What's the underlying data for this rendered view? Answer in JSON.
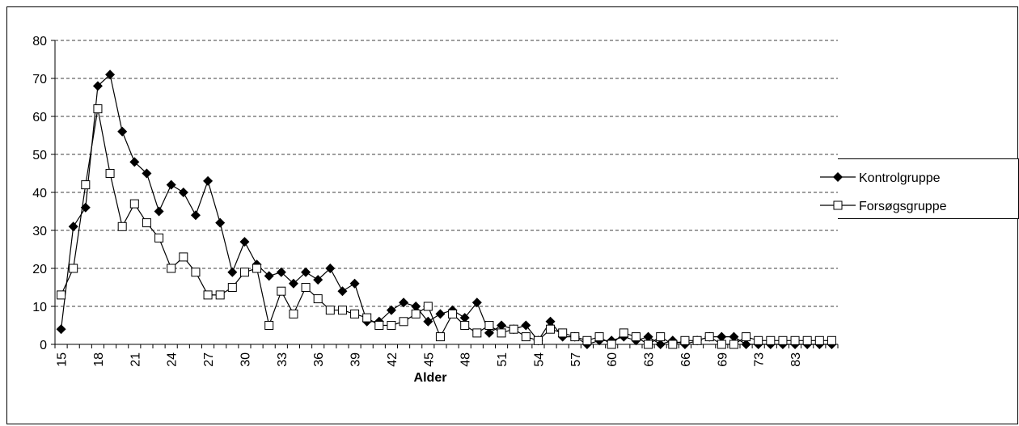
{
  "chart_data": {
    "type": "line",
    "x_label": "Alder",
    "categories": [
      "15",
      null,
      null,
      "18",
      null,
      null,
      "21",
      null,
      null,
      "24",
      null,
      null,
      "27",
      null,
      null,
      "30",
      null,
      null,
      "33",
      null,
      null,
      "36",
      null,
      null,
      "39",
      null,
      null,
      "42",
      null,
      null,
      "45",
      null,
      null,
      "48",
      null,
      null,
      "51",
      null,
      null,
      "54",
      null,
      null,
      "57",
      null,
      null,
      "60",
      null,
      null,
      "63",
      null,
      null,
      "66",
      null,
      null,
      "69",
      null,
      null,
      "73",
      null,
      null,
      "83",
      null,
      null,
      null
    ],
    "series": [
      {
        "name": "Kontrolgruppe",
        "color": "#000000",
        "marker": "diamond",
        "values": [
          4,
          31,
          36,
          68,
          71,
          56,
          48,
          45,
          35,
          42,
          40,
          34,
          43,
          32,
          19,
          27,
          21,
          18,
          19,
          16,
          19,
          17,
          20,
          14,
          16,
          6,
          6,
          9,
          11,
          10,
          6,
          8,
          9,
          7,
          11,
          3,
          5,
          4,
          5,
          1,
          6,
          2,
          2,
          0,
          1,
          1,
          2,
          1,
          2,
          0,
          1,
          0,
          1,
          2,
          2,
          2,
          0,
          0,
          0,
          0,
          0,
          0,
          0,
          0
        ]
      },
      {
        "name": "Forsøgsgruppe",
        "color": "#000000",
        "marker": "square",
        "values": [
          13,
          20,
          42,
          62,
          45,
          31,
          37,
          32,
          28,
          20,
          23,
          19,
          13,
          13,
          15,
          19,
          20,
          5,
          14,
          8,
          15,
          12,
          9,
          9,
          8,
          7,
          5,
          5,
          6,
          8,
          10,
          2,
          8,
          5,
          3,
          5,
          3,
          4,
          2,
          1,
          4,
          3,
          2,
          1,
          2,
          0,
          3,
          2,
          0,
          2,
          0,
          1,
          1,
          2,
          0,
          0,
          2,
          1,
          1,
          1,
          1,
          1,
          1,
          1
        ]
      }
    ],
    "ylim": [
      0,
      80
    ],
    "yticks": [
      0,
      10,
      20,
      30,
      40,
      50,
      60,
      70,
      80
    ],
    "grid": true,
    "legend": "right"
  }
}
